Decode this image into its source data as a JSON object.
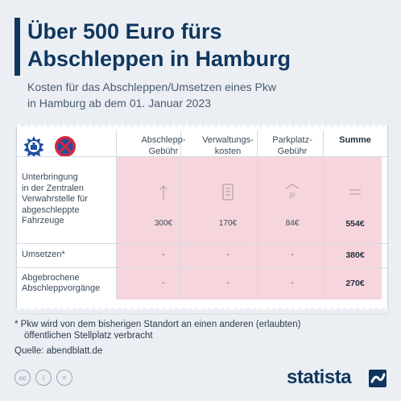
{
  "title": {
    "line1": "Über 500 Euro fürs",
    "line2": "Abschleppen in Hamburg"
  },
  "subtitle": {
    "line1": "Kosten für das Abschleppen/Umsetzen eines Pkw",
    "line2": "in Hamburg ab dem 01. Januar 2023"
  },
  "chart_data": {
    "type": "table",
    "columns": [
      "Abschlepp-Gebühr",
      "Verwaltungs-kosten",
      "Parkplatz-Gebühr",
      "Summe"
    ],
    "column_lines": [
      [
        "Abschlepp-",
        "Gebühr"
      ],
      [
        "Verwaltungs-",
        "kosten"
      ],
      [
        "Parkplatz-",
        "Gebühr"
      ],
      [
        "Summe"
      ]
    ],
    "rows": [
      {
        "label_lines": [
          "Unterbringung",
          "in der Zentralen",
          "Verwahrstelle für",
          "abgeschleppte",
          "Fahrzeuge"
        ],
        "values": [
          "300€",
          "170€",
          "84€",
          "554€"
        ]
      },
      {
        "label_lines": [
          "Umsetzen*"
        ],
        "values": [
          "-",
          "-",
          "-",
          "380€"
        ]
      },
      {
        "label_lines": [
          "Abgebrochene",
          "Abschleppvorgänge"
        ],
        "values": [
          "-",
          "-",
          "-",
          "270€"
        ]
      }
    ],
    "totals_numeric": [
      554,
      380,
      270
    ],
    "components_numeric": {
      "Abschlepp-Gebühr": 300,
      "Verwaltungskosten": 170,
      "Parkplatz-Gebühr": 84
    }
  },
  "icons": [
    "hamburg-police-seal-icon",
    "no-parking-sign-icon",
    "arrow-up-icon",
    "document-icon",
    "parking-icon",
    "equals-icon"
  ],
  "footnote": {
    "line1": "* Pkw wird von dem bisherigen Standort an einen anderen (erlaubten)",
    "line2": "öffentlichen Stellplatz verbracht"
  },
  "source": "Quelle: abendblatt.de",
  "license_icons": [
    "cc-icon",
    "by-icon",
    "nd-icon"
  ],
  "license_labels": [
    "cc",
    "i",
    "="
  ],
  "brand": "statista",
  "colors": {
    "accent": "#10365e",
    "highlight": "#f6d6dc",
    "background": "#ebeff4",
    "sign_red": "#d7263d",
    "sign_blue": "#1f4fa0"
  }
}
